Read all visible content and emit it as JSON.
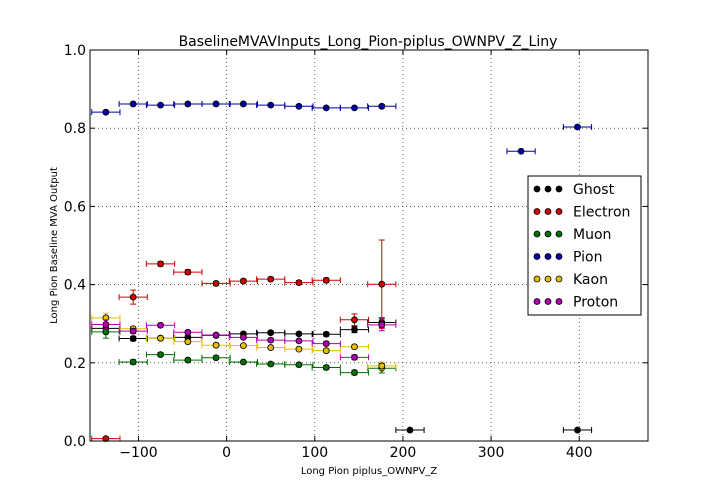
{
  "chart_data": {
    "type": "scatter",
    "title": "BaselineMVAVInputs_Long_Pion-piplus_OWNPV_Z_Liny",
    "xlabel": "Long Pion piplus_OWNPV_Z",
    "ylabel": "Long Pion Baseline MVA Output",
    "xlim": [
      -155,
      478
    ],
    "ylim": [
      0.0,
      1.0
    ],
    "xticks": [
      -100,
      0,
      100,
      200,
      300,
      400
    ],
    "yticks": [
      0.0,
      0.2,
      0.4,
      0.6,
      0.8,
      1.0
    ],
    "xtick_labels": [
      "−100",
      "0",
      "100",
      "200",
      "300",
      "400"
    ],
    "ytick_labels": [
      "0.0",
      "0.2",
      "0.4",
      "0.6",
      "0.8",
      "1.0"
    ],
    "grid": true,
    "legend_position": "center-right",
    "series": [
      {
        "name": "Ghost",
        "color": "#000000",
        "points": [
          {
            "x": -137,
            "xerr": 16,
            "y": 0.288,
            "yerr": 0.012
          },
          {
            "x": -106,
            "xerr": 16,
            "y": 0.262,
            "yerr": 0.006
          },
          {
            "x": -75,
            "xerr": 16,
            "y": 0.263,
            "yerr": 0.005
          },
          {
            "x": -44,
            "xerr": 16,
            "y": 0.265,
            "yerr": 0.004
          },
          {
            "x": -12,
            "xerr": 16,
            "y": 0.27,
            "yerr": 0.004
          },
          {
            "x": 19,
            "xerr": 16,
            "y": 0.274,
            "yerr": 0.004
          },
          {
            "x": 50,
            "xerr": 16,
            "y": 0.277,
            "yerr": 0.004
          },
          {
            "x": 82,
            "xerr": 16,
            "y": 0.274,
            "yerr": 0.004
          },
          {
            "x": 113,
            "xerr": 16,
            "y": 0.273,
            "yerr": 0.005
          },
          {
            "x": 145,
            "xerr": 16,
            "y": 0.285,
            "yerr": 0.008
          },
          {
            "x": 176,
            "xerr": 16,
            "y": 0.303,
            "yerr": 0.012
          },
          {
            "x": 208,
            "xerr": 16,
            "y": 0.028,
            "yerr": 0.0
          },
          {
            "x": 398,
            "xerr": 16,
            "y": 0.028,
            "yerr": 0.0
          }
        ]
      },
      {
        "name": "Electron",
        "color": "#d00000",
        "points": [
          {
            "x": -137,
            "xerr": 16,
            "y": 0.006,
            "yerr": 0.0
          },
          {
            "x": -106,
            "xerr": 16,
            "y": 0.368,
            "yerr": 0.018
          },
          {
            "x": -75,
            "xerr": 16,
            "y": 0.453,
            "yerr": 0.006
          },
          {
            "x": -44,
            "xerr": 16,
            "y": 0.432,
            "yerr": 0.006
          },
          {
            "x": -12,
            "xerr": 16,
            "y": 0.403,
            "yerr": 0.005
          },
          {
            "x": 19,
            "xerr": 16,
            "y": 0.409,
            "yerr": 0.005
          },
          {
            "x": 50,
            "xerr": 16,
            "y": 0.414,
            "yerr": 0.005
          },
          {
            "x": 82,
            "xerr": 16,
            "y": 0.405,
            "yerr": 0.005
          },
          {
            "x": 113,
            "xerr": 16,
            "y": 0.411,
            "yerr": 0.006
          },
          {
            "x": 145,
            "xerr": 16,
            "y": 0.31,
            "yerr": 0.015
          },
          {
            "x": 176,
            "xerr": 16,
            "y": 0.401,
            "yerr": 0.113
          }
        ]
      },
      {
        "name": "Muon",
        "color": "#007000",
        "points": [
          {
            "x": -137,
            "xerr": 16,
            "y": 0.279,
            "yerr": 0.016
          },
          {
            "x": -106,
            "xerr": 16,
            "y": 0.202,
            "yerr": 0.006
          },
          {
            "x": -75,
            "xerr": 16,
            "y": 0.221,
            "yerr": 0.005
          },
          {
            "x": -44,
            "xerr": 16,
            "y": 0.207,
            "yerr": 0.004
          },
          {
            "x": -12,
            "xerr": 16,
            "y": 0.213,
            "yerr": 0.004
          },
          {
            "x": 19,
            "xerr": 16,
            "y": 0.202,
            "yerr": 0.004
          },
          {
            "x": 50,
            "xerr": 16,
            "y": 0.197,
            "yerr": 0.004
          },
          {
            "x": 82,
            "xerr": 16,
            "y": 0.195,
            "yerr": 0.004
          },
          {
            "x": 113,
            "xerr": 16,
            "y": 0.188,
            "yerr": 0.005
          },
          {
            "x": 145,
            "xerr": 16,
            "y": 0.175,
            "yerr": 0.006
          },
          {
            "x": 176,
            "xerr": 16,
            "y": 0.186,
            "yerr": 0.012
          }
        ]
      },
      {
        "name": "Pion",
        "color": "#0000a0",
        "points": [
          {
            "x": -137,
            "xerr": 16,
            "y": 0.841,
            "yerr": 0.004
          },
          {
            "x": -106,
            "xerr": 16,
            "y": 0.862,
            "yerr": 0.002
          },
          {
            "x": -75,
            "xerr": 16,
            "y": 0.859,
            "yerr": 0.002
          },
          {
            "x": -44,
            "xerr": 16,
            "y": 0.862,
            "yerr": 0.002
          },
          {
            "x": -12,
            "xerr": 16,
            "y": 0.862,
            "yerr": 0.002
          },
          {
            "x": 19,
            "xerr": 16,
            "y": 0.862,
            "yerr": 0.002
          },
          {
            "x": 50,
            "xerr": 16,
            "y": 0.859,
            "yerr": 0.002
          },
          {
            "x": 82,
            "xerr": 16,
            "y": 0.856,
            "yerr": 0.002
          },
          {
            "x": 113,
            "xerr": 16,
            "y": 0.852,
            "yerr": 0.002
          },
          {
            "x": 145,
            "xerr": 16,
            "y": 0.852,
            "yerr": 0.003
          },
          {
            "x": 176,
            "xerr": 16,
            "y": 0.856,
            "yerr": 0.004
          },
          {
            "x": 334,
            "xerr": 16,
            "y": 0.741,
            "yerr": 0.0
          },
          {
            "x": 398,
            "xerr": 16,
            "y": 0.803,
            "yerr": 0.0
          }
        ]
      },
      {
        "name": "Kaon",
        "color": "#e0c000",
        "points": [
          {
            "x": -137,
            "xerr": 16,
            "y": 0.315,
            "yerr": 0.012
          },
          {
            "x": -106,
            "xerr": 16,
            "y": 0.287,
            "yerr": 0.006
          },
          {
            "x": -75,
            "xerr": 16,
            "y": 0.263,
            "yerr": 0.005
          },
          {
            "x": -44,
            "xerr": 16,
            "y": 0.254,
            "yerr": 0.004
          },
          {
            "x": -12,
            "xerr": 16,
            "y": 0.245,
            "yerr": 0.004
          },
          {
            "x": 19,
            "xerr": 16,
            "y": 0.244,
            "yerr": 0.004
          },
          {
            "x": 50,
            "xerr": 16,
            "y": 0.239,
            "yerr": 0.004
          },
          {
            "x": 82,
            "xerr": 16,
            "y": 0.235,
            "yerr": 0.004
          },
          {
            "x": 113,
            "xerr": 16,
            "y": 0.231,
            "yerr": 0.005
          },
          {
            "x": 145,
            "xerr": 16,
            "y": 0.241,
            "yerr": 0.006
          },
          {
            "x": 176,
            "xerr": 16,
            "y": 0.192,
            "yerr": 0.01
          }
        ]
      },
      {
        "name": "Proton",
        "color": "#b000b0",
        "points": [
          {
            "x": -137,
            "xerr": 16,
            "y": 0.298,
            "yerr": 0.012
          },
          {
            "x": -106,
            "xerr": 16,
            "y": 0.281,
            "yerr": 0.006
          },
          {
            "x": -75,
            "xerr": 16,
            "y": 0.296,
            "yerr": 0.005
          },
          {
            "x": -44,
            "xerr": 16,
            "y": 0.278,
            "yerr": 0.004
          },
          {
            "x": -12,
            "xerr": 16,
            "y": 0.271,
            "yerr": 0.004
          },
          {
            "x": 19,
            "xerr": 16,
            "y": 0.265,
            "yerr": 0.004
          },
          {
            "x": 50,
            "xerr": 16,
            "y": 0.258,
            "yerr": 0.004
          },
          {
            "x": 82,
            "xerr": 16,
            "y": 0.256,
            "yerr": 0.004
          },
          {
            "x": 113,
            "xerr": 16,
            "y": 0.249,
            "yerr": 0.005
          },
          {
            "x": 145,
            "xerr": 16,
            "y": 0.214,
            "yerr": 0.006
          },
          {
            "x": 176,
            "xerr": 16,
            "y": 0.297,
            "yerr": 0.015
          }
        ]
      }
    ]
  }
}
